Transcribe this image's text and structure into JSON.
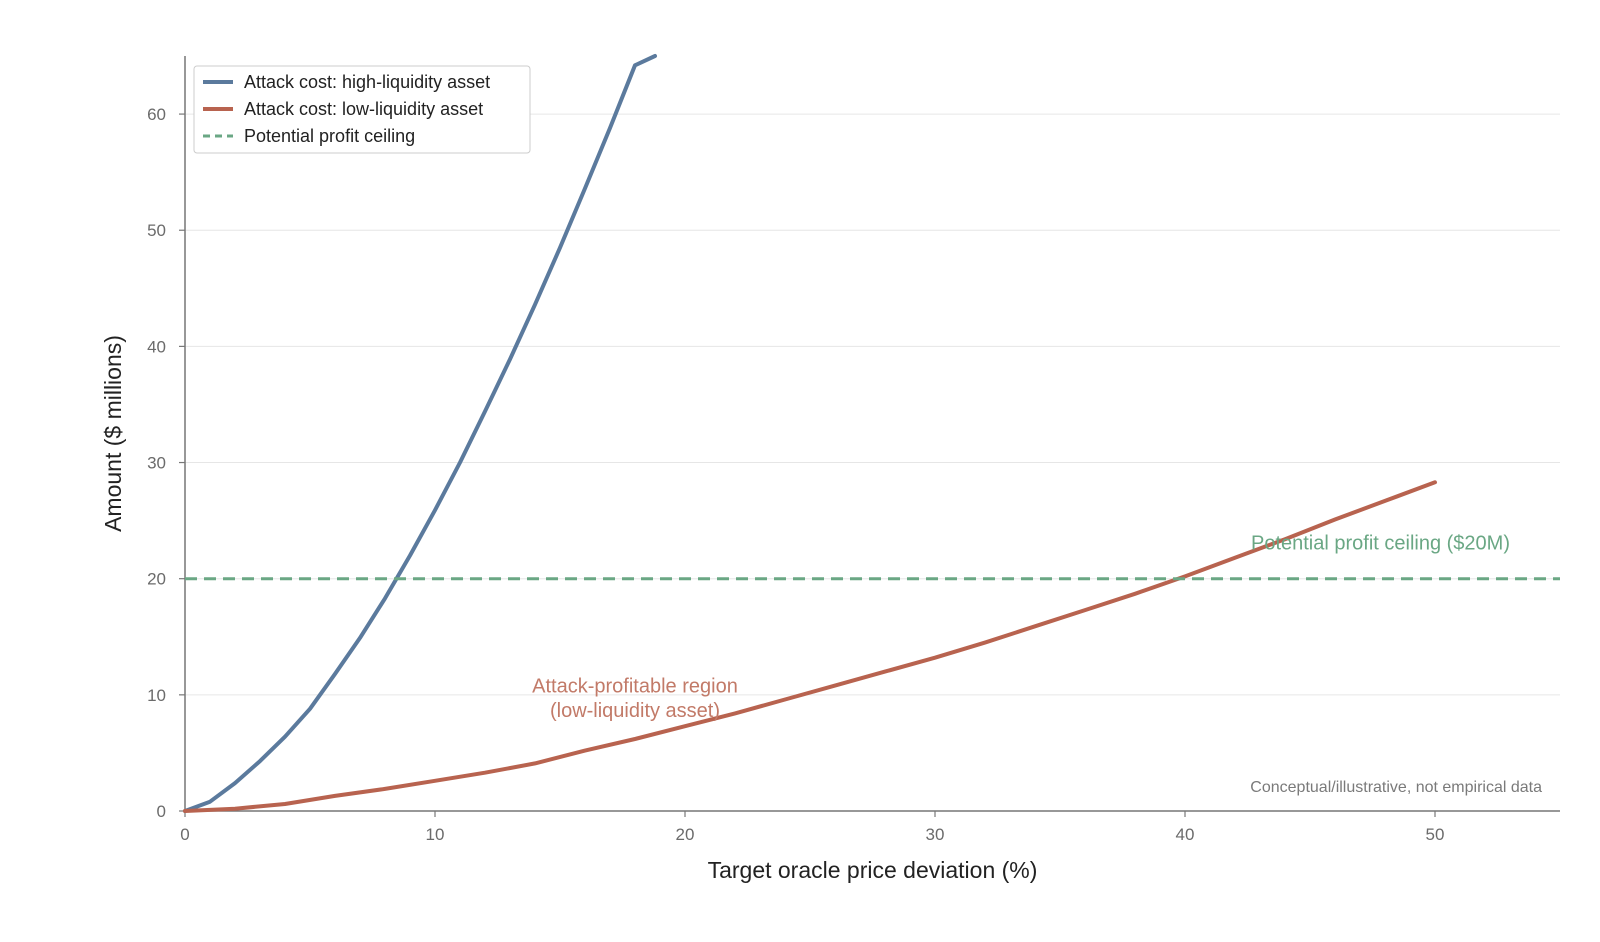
{
  "chart_data": {
    "type": "line",
    "title": "",
    "xlabel": "Target oracle price deviation (%)",
    "ylabel": "Amount ($ millions)",
    "xlim": [
      0,
      55
    ],
    "ylim": [
      0,
      65
    ],
    "xticks": [
      0,
      10,
      20,
      30,
      40,
      50
    ],
    "yticks": [
      0,
      10,
      20,
      30,
      40,
      50,
      60
    ],
    "grid": "horizontal",
    "legend_position": "top-left",
    "series": [
      {
        "name": "Attack cost: high-liquidity asset",
        "color": "#5b7a9d",
        "style": "solid",
        "x": [
          0,
          1,
          2,
          3,
          4,
          5,
          6,
          7,
          8,
          9,
          10,
          11,
          12,
          13,
          14,
          15,
          16,
          17,
          18,
          18.8
        ],
        "y": [
          0,
          0.8,
          2.4,
          4.3,
          6.4,
          8.8,
          11.8,
          14.9,
          18.3,
          22.0,
          25.9,
          30.0,
          34.4,
          38.9,
          43.6,
          48.5,
          53.6,
          58.8,
          64.2,
          65
        ]
      },
      {
        "name": "Attack cost: low-liquidity asset",
        "color": "#b8634f",
        "style": "solid",
        "x": [
          0,
          2,
          4,
          6,
          8,
          10,
          12,
          14,
          16,
          18,
          20,
          22,
          24,
          26,
          28,
          30,
          32,
          34,
          36,
          38,
          40,
          42,
          44,
          46,
          48,
          50
        ],
        "y": [
          0,
          0.2,
          0.6,
          1.3,
          1.9,
          2.6,
          3.3,
          4.1,
          5.2,
          6.2,
          7.3,
          8.4,
          9.6,
          10.8,
          12.0,
          13.2,
          14.5,
          15.9,
          17.3,
          18.7,
          20.2,
          21.8,
          23.4,
          25.1,
          26.7,
          28.3
        ]
      },
      {
        "name": "Potential profit ceiling",
        "color": "#6aa784",
        "style": "dashed",
        "x": [
          0,
          55
        ],
        "y": [
          20,
          20
        ]
      }
    ],
    "annotations": [
      {
        "text": "Potential profit ceiling ($20M)",
        "x": 53,
        "y": 22.5,
        "color": "#6aa784",
        "anchor": "end"
      },
      {
        "text": "Attack-profitable region",
        "x": 18,
        "y": 10.2,
        "color": "#c27a68",
        "anchor": "middle"
      },
      {
        "text": "(low-liquidity asset)",
        "x": 18,
        "y": 8.1,
        "color": "#c27a68",
        "anchor": "middle"
      }
    ],
    "footnote": "Conceptual/illustrative, not empirical data"
  }
}
